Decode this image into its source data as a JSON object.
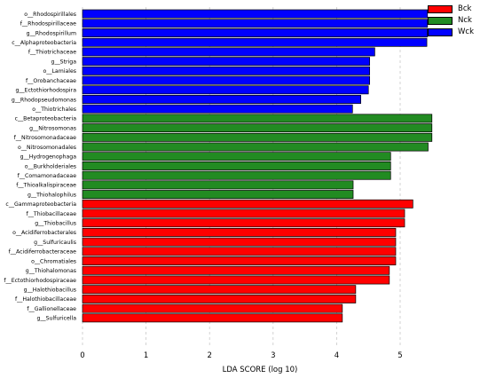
{
  "chart_data": {
    "type": "bar",
    "orientation": "horizontal",
    "xlabel": "LDA SCORE (log 10)",
    "xlim": [
      0,
      5.5
    ],
    "x_ticks": [
      "0",
      "1",
      "2",
      "3",
      "4",
      "5"
    ],
    "grid": "vertical dashed",
    "legend_position": "top-right",
    "legend": [
      {
        "name": "Bck",
        "color": "#ff0000"
      },
      {
        "name": "Nck",
        "color": "#228b22"
      },
      {
        "name": "Wck",
        "color": "#0000ff"
      }
    ],
    "categories": [
      "o__Rhodospirillales",
      "f__Rhodospirillaceae",
      "g__Rhodospirillum",
      "c__Alphaproteobacteria",
      "f__Thiotrichaceae",
      "g__Striga",
      "o__Lamiales",
      "f__Orobanchaceae",
      "g__Ectothiorhodospira",
      "g__Rhodopseudomonas",
      "o__Thiotrichales",
      "c__Betaproteobacteria",
      "g__Nitrosomonas",
      "f__Nitrosomonadaceae",
      "o__Nitrosomonadales",
      "g__Hydrogenophaga",
      "o__Burkholderiales",
      "f__Comamonadaceae",
      "f__Thioalkalispiraceae",
      "g__Thiohalophilus",
      "c__Gammaproteobacteria",
      "f__Thiobacillaceae",
      "g__Thiobacillus",
      "o__Acidiferrobacterales",
      "g__Sulfuricaulis",
      "f__Acidiferrobacteraceae",
      "o__Chromatiales",
      "g__Thiohalomonas",
      "f__Ectothiorhodospiraceae",
      "g__Halothiobacillus",
      "f__Halothiobacillaceae",
      "f__Gallionellaceae",
      "g__Sulfuricella"
    ],
    "values": [
      5.43,
      5.43,
      5.43,
      5.42,
      4.6,
      4.52,
      4.52,
      4.52,
      4.5,
      4.38,
      4.25,
      5.5,
      5.5,
      5.5,
      5.44,
      4.85,
      4.85,
      4.85,
      4.26,
      4.26,
      5.2,
      5.07,
      5.07,
      4.93,
      4.93,
      4.93,
      4.93,
      4.83,
      4.83,
      4.3,
      4.3,
      4.09,
      4.09
    ],
    "groups": [
      "Wck",
      "Wck",
      "Wck",
      "Wck",
      "Wck",
      "Wck",
      "Wck",
      "Wck",
      "Wck",
      "Wck",
      "Wck",
      "Nck",
      "Nck",
      "Nck",
      "Nck",
      "Nck",
      "Nck",
      "Nck",
      "Nck",
      "Nck",
      "Bck",
      "Bck",
      "Bck",
      "Bck",
      "Bck",
      "Bck",
      "Bck",
      "Bck",
      "Bck",
      "Bck",
      "Bck",
      "Bck",
      "Bck"
    ]
  }
}
